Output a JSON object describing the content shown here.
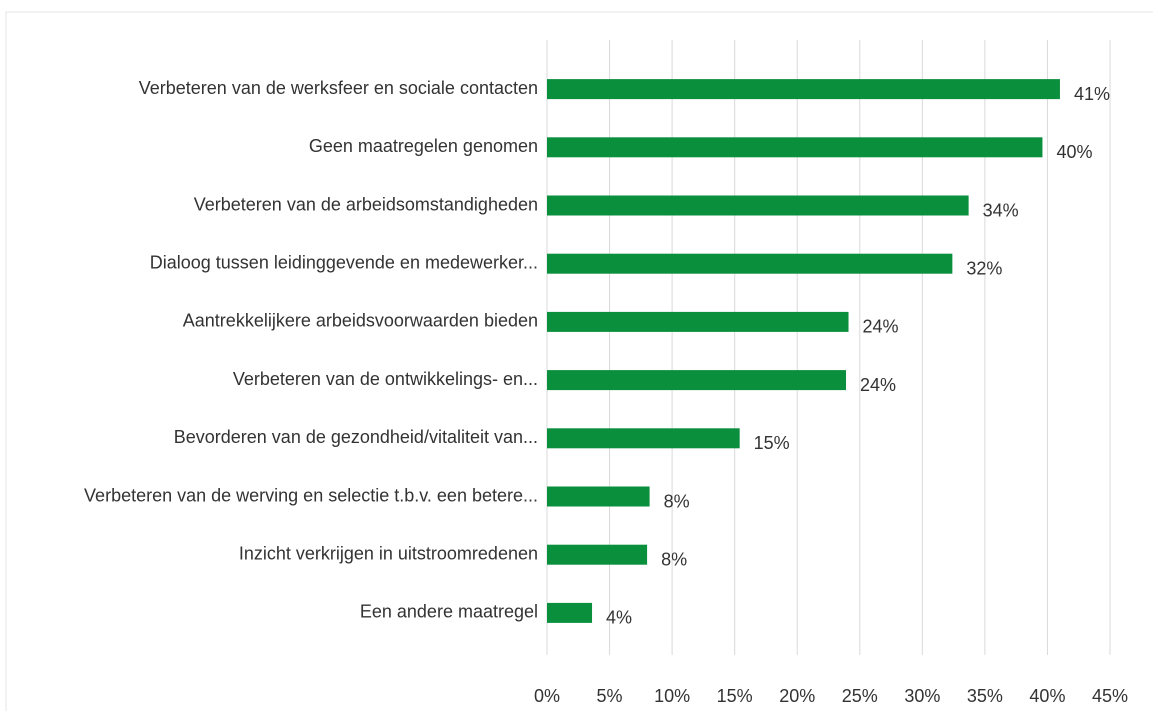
{
  "chart_data": {
    "type": "bar",
    "orientation": "horizontal",
    "categories": [
      "Verbeteren van de werksfeer en sociale contacten",
      "Geen maatregelen genomen",
      "Verbeteren van de arbeidsomstandigheden",
      "Dialoog tussen leidinggevende en medewerker...",
      "Aantrekkelijkere arbeidsvoorwaarden bieden",
      "Verbeteren van de ontwikkelings- en...",
      "Bevorderen van de gezondheid/vitaliteit van...",
      "Verbeteren van de werving en selectie t.b.v. een betere...",
      "Inzicht verkrijgen in uitstroomredenen",
      "Een andere maatregel"
    ],
    "values": [
      41.0,
      39.6,
      33.7,
      32.4,
      24.1,
      23.9,
      15.4,
      8.2,
      8.0,
      3.6
    ],
    "value_labels": [
      "41%",
      "40%",
      "34%",
      "32%",
      "24%",
      "24%",
      "15%",
      "8%",
      "8%",
      "4%"
    ],
    "color": "#0a8f3c",
    "xlim": [
      0,
      45
    ],
    "xticks": [
      {
        "value": 0,
        "label": "0%"
      },
      {
        "value": 5,
        "label": "5%"
      },
      {
        "value": 10,
        "label": "10%"
      },
      {
        "value": 15,
        "label": "15%"
      },
      {
        "value": 20,
        "label": "20%"
      },
      {
        "value": 25,
        "label": "25%"
      },
      {
        "value": 30,
        "label": "30%"
      },
      {
        "value": 35,
        "label": "35%"
      },
      {
        "value": 40,
        "label": "40%"
      },
      {
        "value": 45,
        "label": "45%"
      }
    ],
    "grid": true
  }
}
